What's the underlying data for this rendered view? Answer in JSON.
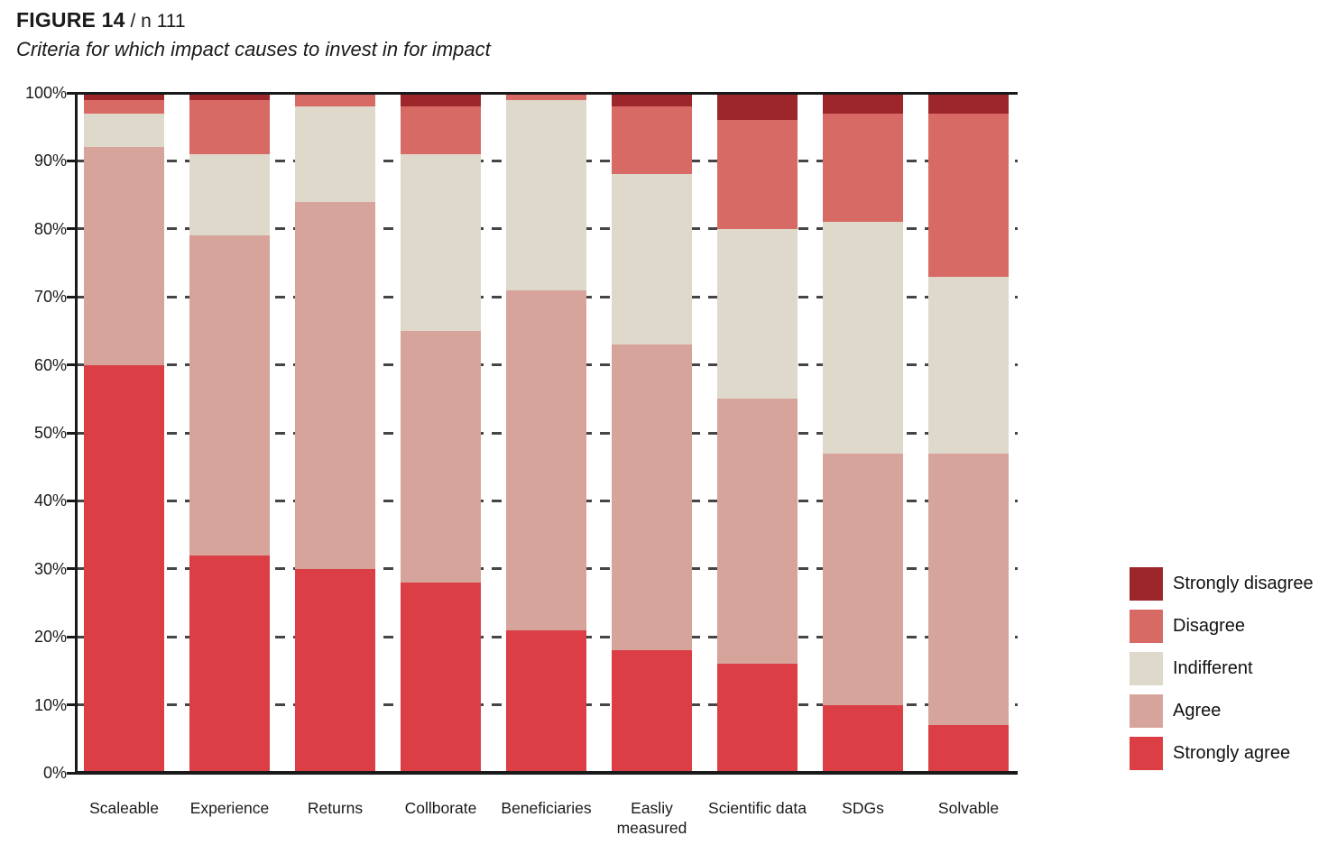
{
  "figure": {
    "label": "FIGURE 14",
    "n_label": " / n 111",
    "subtitle": "Criteria for which impact causes to invest in for impact"
  },
  "chart_data": {
    "type": "bar",
    "variant": "stacked-100-percent-vertical",
    "title": "Criteria for which impact causes to invest in for impact",
    "sample_size_label": "n 111",
    "categories": [
      "Scaleable",
      "Experience",
      "Returns",
      "Collborate",
      "Beneficiaries",
      "Easliy measured",
      "Scientific data",
      "SDGs",
      "Solvable"
    ],
    "series": [
      {
        "name": "Strongly agree",
        "color": "#DC3E45",
        "values": [
          60,
          32,
          30,
          28,
          21,
          18,
          16,
          10,
          7
        ]
      },
      {
        "name": "Agree",
        "color": "#D7A49B",
        "values": [
          32,
          47,
          54,
          37,
          50,
          45,
          39,
          37,
          40
        ]
      },
      {
        "name": "Indifferent",
        "color": "#DFD9CB",
        "values": [
          5,
          12,
          14,
          26,
          28,
          25,
          25,
          34,
          26
        ]
      },
      {
        "name": "Disagree",
        "color": "#D86A66",
        "values": [
          2,
          8,
          2,
          7,
          1,
          10,
          16,
          16,
          24
        ]
      },
      {
        "name": "Strongly disagree",
        "color": "#9D262B",
        "values": [
          1,
          1,
          0,
          2,
          0,
          2,
          4,
          3,
          3
        ]
      }
    ],
    "y_axis": {
      "min": 0,
      "max": 100,
      "tick_step": 10,
      "tick_labels": [
        "0%",
        "10%",
        "20%",
        "30%",
        "40%",
        "50%",
        "60%",
        "70%",
        "80%",
        "90%",
        "100%"
      ],
      "gridlines": "dashed"
    },
    "legend": {
      "position": "right",
      "order_top_to_bottom": [
        "Strongly disagree",
        "Disagree",
        "Indifferent",
        "Agree",
        "Strongly agree"
      ]
    }
  }
}
